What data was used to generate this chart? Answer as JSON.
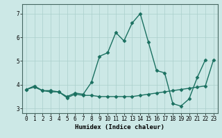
{
  "xlabel": "Humidex (Indice chaleur)",
  "background_color": "#cce8e6",
  "grid_color": "#aacfcc",
  "line_color": "#1a7060",
  "x_values": [
    0,
    1,
    2,
    3,
    4,
    5,
    6,
    7,
    8,
    9,
    10,
    11,
    12,
    13,
    14,
    15,
    16,
    17,
    18,
    19,
    20,
    21,
    22,
    23
  ],
  "line1_y": [
    3.8,
    3.9,
    3.75,
    3.75,
    3.7,
    3.5,
    3.65,
    3.6,
    4.1,
    5.2,
    5.35,
    6.2,
    5.85,
    6.6,
    7.0,
    5.8,
    4.6,
    4.5,
    3.2,
    3.1,
    3.4,
    4.3,
    5.05,
    null
  ],
  "line2_y": [
    3.8,
    3.95,
    3.75,
    3.7,
    3.7,
    3.45,
    3.6,
    3.55,
    3.55,
    3.5,
    3.5,
    3.5,
    3.5,
    3.5,
    3.55,
    3.6,
    3.65,
    3.7,
    3.75,
    3.8,
    3.85,
    3.9,
    3.95,
    5.05
  ],
  "xlim": [
    -0.5,
    23.5
  ],
  "ylim": [
    2.8,
    7.4
  ],
  "yticks": [
    3,
    4,
    5,
    6,
    7
  ],
  "xticks": [
    0,
    1,
    2,
    3,
    4,
    5,
    6,
    7,
    8,
    9,
    10,
    11,
    12,
    13,
    14,
    15,
    16,
    17,
    18,
    19,
    20,
    21,
    22,
    23
  ],
  "marker": "D",
  "markersize": 2.5,
  "linewidth": 1.0,
  "axis_fontsize": 6.5,
  "tick_fontsize": 5.5
}
